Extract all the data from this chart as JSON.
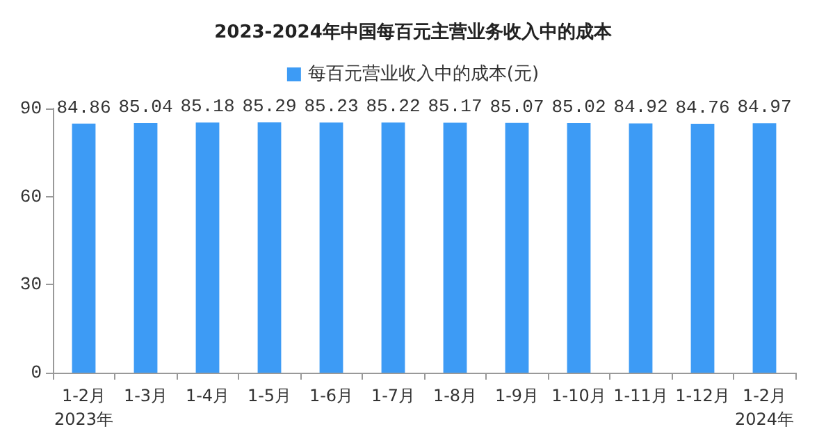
{
  "chart_data": {
    "type": "bar",
    "title": "2023-2024年中国每百元主营业务收入中的成本",
    "categories": [
      "1-2月\n2023年",
      "1-3月",
      "1-4月",
      "1-5月",
      "1-6月",
      "1-7月",
      "1-8月",
      "1-9月",
      "1-10月",
      "1-11月",
      "1-12月",
      "1-2月\n2024年"
    ],
    "series": [
      {
        "name": "每百元营业收入中的成本(元)",
        "color": "#3d9bf5",
        "values": [
          84.86,
          85.04,
          85.18,
          85.29,
          85.23,
          85.22,
          85.17,
          85.07,
          85.02,
          84.92,
          84.76,
          84.97
        ]
      }
    ],
    "ylim": [
      0,
      90
    ],
    "yticks": [
      0,
      30,
      60,
      90
    ],
    "grid": false,
    "legend": "top",
    "data_labels": true
  }
}
